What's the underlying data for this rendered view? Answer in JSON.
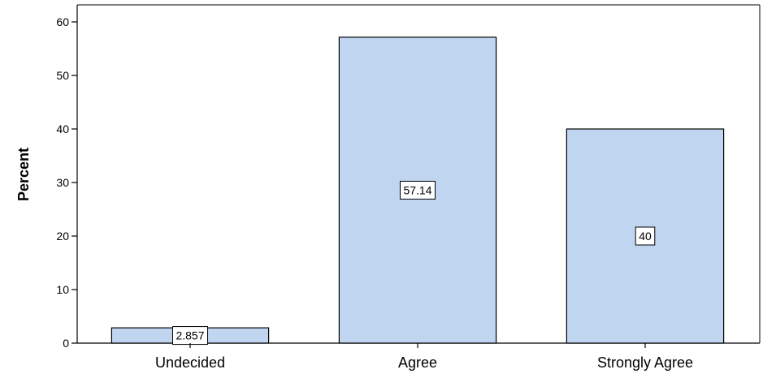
{
  "chart_data": {
    "type": "bar",
    "categories": [
      "Undecided",
      "Agree",
      "Strongly Agree"
    ],
    "values": [
      2.857,
      57.14,
      40
    ],
    "data_labels": [
      "2.857",
      "57.14",
      "40"
    ],
    "ylabel": "Percent",
    "xlabel": "",
    "ylim": [
      0,
      60
    ],
    "yticks": [
      0,
      10,
      20,
      30,
      40,
      50,
      60
    ],
    "grid": false,
    "bar_color": "#C0D5F0",
    "bar_edge_color": "#000000"
  }
}
